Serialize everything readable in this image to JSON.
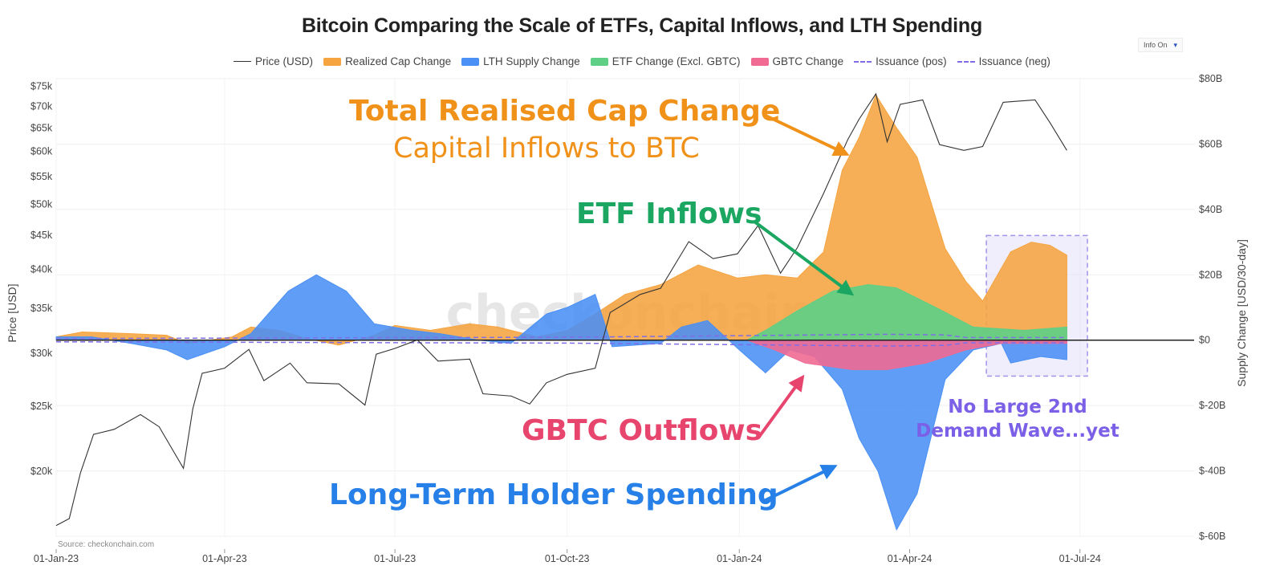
{
  "info_toggle": {
    "label": "Info On",
    "caret": "▾"
  },
  "source": "Source: checkonchain.com",
  "watermark": "_checkonchain",
  "annotations": {
    "realised_title": "Total Realised Cap Change",
    "realised_sub": "Capital Inflows to BTC",
    "etf": "ETF Inflows",
    "gbtc": "GBTC Outflows",
    "lth": "Long-Term Holder Spending",
    "no_wave_1": "No Large 2nd",
    "no_wave_2": "Demand Wave...yet"
  },
  "colors": {
    "price": "#333333",
    "realized": "#f5a440",
    "lth": "#4a90f5",
    "etf": "#5ecf85",
    "gbtc": "#f06a94",
    "issuance": "#7e6ee6",
    "annot_orange": "#f0921a",
    "annot_green": "#1ba762",
    "annot_pink": "#e8456e",
    "annot_blue": "#2680e8",
    "annot_purple": "#7b5fe6"
  },
  "chart_data": {
    "type": "area",
    "title": "Bitcoin Comparing the Scale of ETFs, Capital Inflows, and LTH Spending",
    "xlabel": "",
    "ylabel_left": "Price [USD]",
    "ylabel_right": "Supply Change [USD/30-day]",
    "x_ticks": [
      "01-Jan-23",
      "01-Apr-23",
      "01-Jul-23",
      "01-Oct-23",
      "01-Jan-24",
      "01-Apr-24",
      "01-Jul-24"
    ],
    "x_range": [
      "2023-01-01",
      "2024-08-31"
    ],
    "y_left": {
      "scale": "log",
      "range": [
        16000,
        77000
      ],
      "ticks": [
        20000,
        25000,
        30000,
        35000,
        40000,
        45000,
        50000,
        55000,
        60000,
        65000,
        70000,
        75000
      ],
      "tick_labels": [
        "$20k",
        "$25k",
        "$30k",
        "$35k",
        "$40k",
        "$45k",
        "$50k",
        "$55k",
        "$60k",
        "$65k",
        "$70k",
        "$75k"
      ]
    },
    "y_right": {
      "range": [
        -60,
        80
      ],
      "ticks": [
        -60,
        -40,
        -20,
        0,
        20,
        40,
        60,
        80
      ],
      "tick_labels": [
        "$-60B",
        "$-40B",
        "$-20B",
        "$0",
        "$20B",
        "$40B",
        "$60B",
        "$80B"
      ]
    },
    "grid": true,
    "legend_position": "top-center",
    "series": [
      {
        "name": "Price (USD)",
        "type": "line",
        "axis": "left",
        "points": [
          [
            "2023-01-01",
            16600
          ],
          [
            "2023-01-08",
            17000
          ],
          [
            "2023-01-14",
            19900
          ],
          [
            "2023-01-21",
            22700
          ],
          [
            "2023-02-01",
            23100
          ],
          [
            "2023-02-15",
            24300
          ],
          [
            "2023-02-25",
            23300
          ],
          [
            "2023-03-10",
            20200
          ],
          [
            "2023-03-15",
            24800
          ],
          [
            "2023-03-20",
            28000
          ],
          [
            "2023-04-01",
            28500
          ],
          [
            "2023-04-14",
            30400
          ],
          [
            "2023-04-22",
            27300
          ],
          [
            "2023-05-06",
            29000
          ],
          [
            "2023-05-15",
            27100
          ],
          [
            "2023-06-01",
            27000
          ],
          [
            "2023-06-15",
            25100
          ],
          [
            "2023-06-21",
            29900
          ],
          [
            "2023-07-01",
            30500
          ],
          [
            "2023-07-13",
            31400
          ],
          [
            "2023-07-24",
            29200
          ],
          [
            "2023-08-10",
            29400
          ],
          [
            "2023-08-17",
            26100
          ],
          [
            "2023-09-01",
            25900
          ],
          [
            "2023-09-11",
            25200
          ],
          [
            "2023-09-20",
            27100
          ],
          [
            "2023-10-01",
            27900
          ],
          [
            "2023-10-16",
            28500
          ],
          [
            "2023-10-24",
            34500
          ],
          [
            "2023-11-09",
            36700
          ],
          [
            "2023-11-20",
            37500
          ],
          [
            "2023-12-05",
            44000
          ],
          [
            "2023-12-18",
            41500
          ],
          [
            "2023-12-31",
            42200
          ],
          [
            "2024-01-11",
            46500
          ],
          [
            "2024-01-23",
            39500
          ],
          [
            "2024-02-01",
            43100
          ],
          [
            "2024-02-15",
            51900
          ],
          [
            "2024-02-28",
            62500
          ],
          [
            "2024-03-05",
            67000
          ],
          [
            "2024-03-14",
            73100
          ],
          [
            "2024-03-20",
            62000
          ],
          [
            "2024-03-27",
            70500
          ],
          [
            "2024-04-08",
            71600
          ],
          [
            "2024-04-17",
            61400
          ],
          [
            "2024-04-30",
            60200
          ],
          [
            "2024-05-10",
            61000
          ],
          [
            "2024-05-21",
            71000
          ],
          [
            "2024-06-07",
            71600
          ],
          [
            "2024-06-15",
            66200
          ],
          [
            "2024-06-24",
            60200
          ]
        ]
      },
      {
        "name": "Realized Cap Change",
        "type": "area",
        "axis": "right",
        "points": [
          [
            "2023-01-01",
            1
          ],
          [
            "2023-01-15",
            2.5
          ],
          [
            "2023-02-10",
            2
          ],
          [
            "2023-03-01",
            1.5
          ],
          [
            "2023-03-12",
            -1
          ],
          [
            "2023-04-05",
            1
          ],
          [
            "2023-04-15",
            4
          ],
          [
            "2023-04-30",
            3
          ],
          [
            "2023-05-15",
            0.5
          ],
          [
            "2023-06-01",
            -1.5
          ],
          [
            "2023-06-20",
            1.5
          ],
          [
            "2023-07-01",
            4.5
          ],
          [
            "2023-07-20",
            3
          ],
          [
            "2023-08-10",
            5
          ],
          [
            "2023-08-25",
            4
          ],
          [
            "2023-09-15",
            1
          ],
          [
            "2023-10-01",
            3
          ],
          [
            "2023-10-16",
            8
          ],
          [
            "2023-11-01",
            14
          ],
          [
            "2023-11-20",
            17
          ],
          [
            "2023-12-10",
            23
          ],
          [
            "2023-12-31",
            19
          ],
          [
            "2024-01-15",
            20
          ],
          [
            "2024-02-01",
            19
          ],
          [
            "2024-02-15",
            27
          ],
          [
            "2024-02-25",
            52
          ],
          [
            "2024-03-05",
            62
          ],
          [
            "2024-03-14",
            75
          ],
          [
            "2024-03-25",
            65
          ],
          [
            "2024-04-05",
            56
          ],
          [
            "2024-04-20",
            28
          ],
          [
            "2024-05-01",
            18
          ],
          [
            "2024-05-10",
            12
          ],
          [
            "2024-05-16",
            18
          ],
          [
            "2024-05-25",
            27
          ],
          [
            "2024-06-05",
            30
          ],
          [
            "2024-06-15",
            29
          ],
          [
            "2024-06-24",
            26
          ]
        ]
      },
      {
        "name": "LTH Supply Change",
        "type": "area",
        "axis": "right",
        "points": [
          [
            "2023-01-01",
            1
          ],
          [
            "2023-01-20",
            1
          ],
          [
            "2023-02-10",
            -1
          ],
          [
            "2023-03-01",
            -3
          ],
          [
            "2023-03-12",
            -6
          ],
          [
            "2023-04-01",
            -2
          ],
          [
            "2023-04-15",
            2
          ],
          [
            "2023-05-05",
            15
          ],
          [
            "2023-05-20",
            20
          ],
          [
            "2023-06-05",
            15
          ],
          [
            "2023-06-20",
            5
          ],
          [
            "2023-07-10",
            3
          ],
          [
            "2023-07-25",
            2
          ],
          [
            "2023-08-15",
            0
          ],
          [
            "2023-09-01",
            -1
          ],
          [
            "2023-09-20",
            8
          ],
          [
            "2023-10-01",
            10
          ],
          [
            "2023-10-16",
            14
          ],
          [
            "2023-10-25",
            -2
          ],
          [
            "2023-11-20",
            -1
          ],
          [
            "2023-12-01",
            4
          ],
          [
            "2023-12-15",
            6
          ],
          [
            "2024-01-01",
            -3
          ],
          [
            "2024-01-15",
            -10
          ],
          [
            "2024-01-28",
            -3
          ],
          [
            "2024-02-10",
            -5
          ],
          [
            "2024-02-25",
            -15
          ],
          [
            "2024-03-05",
            -30
          ],
          [
            "2024-03-15",
            -40
          ],
          [
            "2024-03-25",
            -58
          ],
          [
            "2024-04-05",
            -47
          ],
          [
            "2024-04-20",
            -12
          ],
          [
            "2024-05-05",
            -3
          ],
          [
            "2024-05-20",
            -1
          ],
          [
            "2024-05-25",
            -7
          ],
          [
            "2024-06-10",
            -5
          ],
          [
            "2024-06-24",
            -6
          ]
        ]
      },
      {
        "name": "ETF Change (Excl. GBTC)",
        "type": "area",
        "axis": "right",
        "points": [
          [
            "2024-01-05",
            0
          ],
          [
            "2024-01-15",
            3
          ],
          [
            "2024-02-01",
            9
          ],
          [
            "2024-02-20",
            15
          ],
          [
            "2024-03-10",
            17
          ],
          [
            "2024-03-25",
            16
          ],
          [
            "2024-04-15",
            10
          ],
          [
            "2024-05-05",
            4
          ],
          [
            "2024-06-01",
            3
          ],
          [
            "2024-06-24",
            4
          ]
        ]
      },
      {
        "name": "GBTC Change",
        "type": "area",
        "axis": "right",
        "points": [
          [
            "2024-01-05",
            0
          ],
          [
            "2024-01-20",
            -3
          ],
          [
            "2024-02-05",
            -7
          ],
          [
            "2024-03-01",
            -9
          ],
          [
            "2024-03-20",
            -9
          ],
          [
            "2024-04-10",
            -7
          ],
          [
            "2024-05-01",
            -3
          ],
          [
            "2024-05-20",
            -1
          ],
          [
            "2024-06-24",
            -1
          ]
        ]
      },
      {
        "name": "Issuance (pos)",
        "type": "dashed-line",
        "axis": "right",
        "points": [
          [
            "2023-01-01",
            0.5
          ],
          [
            "2023-10-01",
            0.9
          ],
          [
            "2024-03-20",
            1.8
          ],
          [
            "2024-04-20",
            1.6
          ],
          [
            "2024-05-01",
            0.8
          ],
          [
            "2024-06-24",
            0.8
          ]
        ]
      },
      {
        "name": "Issuance (neg)",
        "type": "dashed-line",
        "axis": "right",
        "points": [
          [
            "2023-01-01",
            -0.5
          ],
          [
            "2023-10-01",
            -0.9
          ],
          [
            "2024-03-20",
            -1.8
          ],
          [
            "2024-04-20",
            -1.6
          ],
          [
            "2024-05-01",
            -0.8
          ],
          [
            "2024-06-24",
            -0.8
          ]
        ]
      }
    ]
  }
}
